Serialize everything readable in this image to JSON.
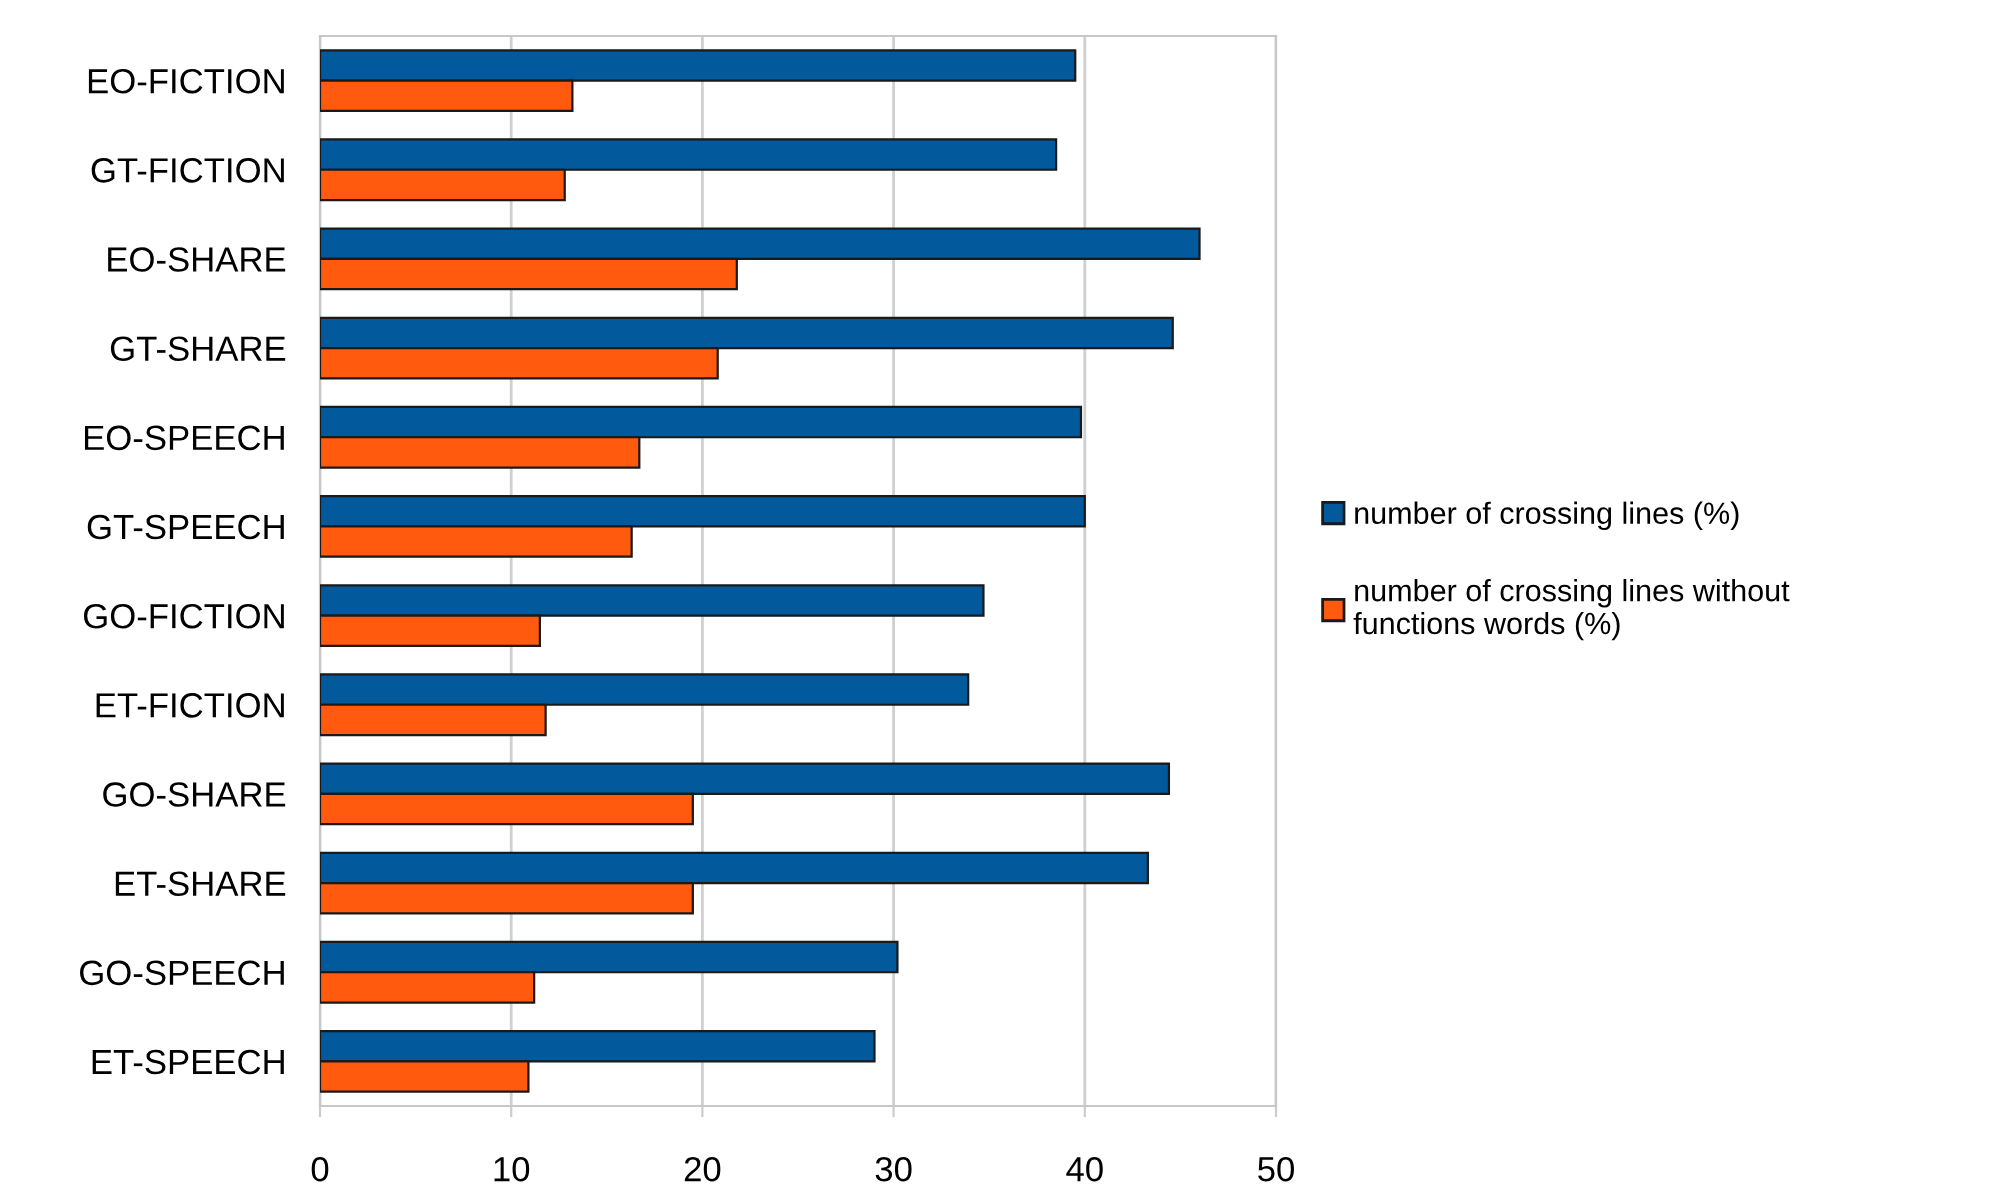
{
  "chart_data": {
    "type": "bar",
    "orientation": "horizontal",
    "categories": [
      "EO-FICTION",
      "GT-FICTION",
      "EO-SHARE",
      "GT-SHARE",
      "EO-SPEECH",
      "GT-SPEECH",
      "GO-FICTION",
      "ET-FICTION",
      "GO-SHARE",
      "ET-SHARE",
      "GO-SPEECH",
      "ET-SPEECH"
    ],
    "series": [
      {
        "name": "number of crossing lines (%)",
        "color": "#02599c",
        "values": [
          39.5,
          38.5,
          46.0,
          44.6,
          39.8,
          40.0,
          34.7,
          33.9,
          44.4,
          43.3,
          30.2,
          29.0
        ]
      },
      {
        "name": "number of crossing lines without functions words (%)",
        "color": "#ff5a0d",
        "values": [
          13.2,
          12.8,
          21.8,
          20.8,
          16.7,
          16.3,
          11.5,
          11.8,
          19.5,
          19.5,
          11.2,
          10.9
        ]
      }
    ],
    "xlim": [
      0,
      50
    ],
    "xticks": [
      0,
      10,
      20,
      30,
      40,
      50
    ],
    "grid": "x",
    "legend": "right"
  }
}
